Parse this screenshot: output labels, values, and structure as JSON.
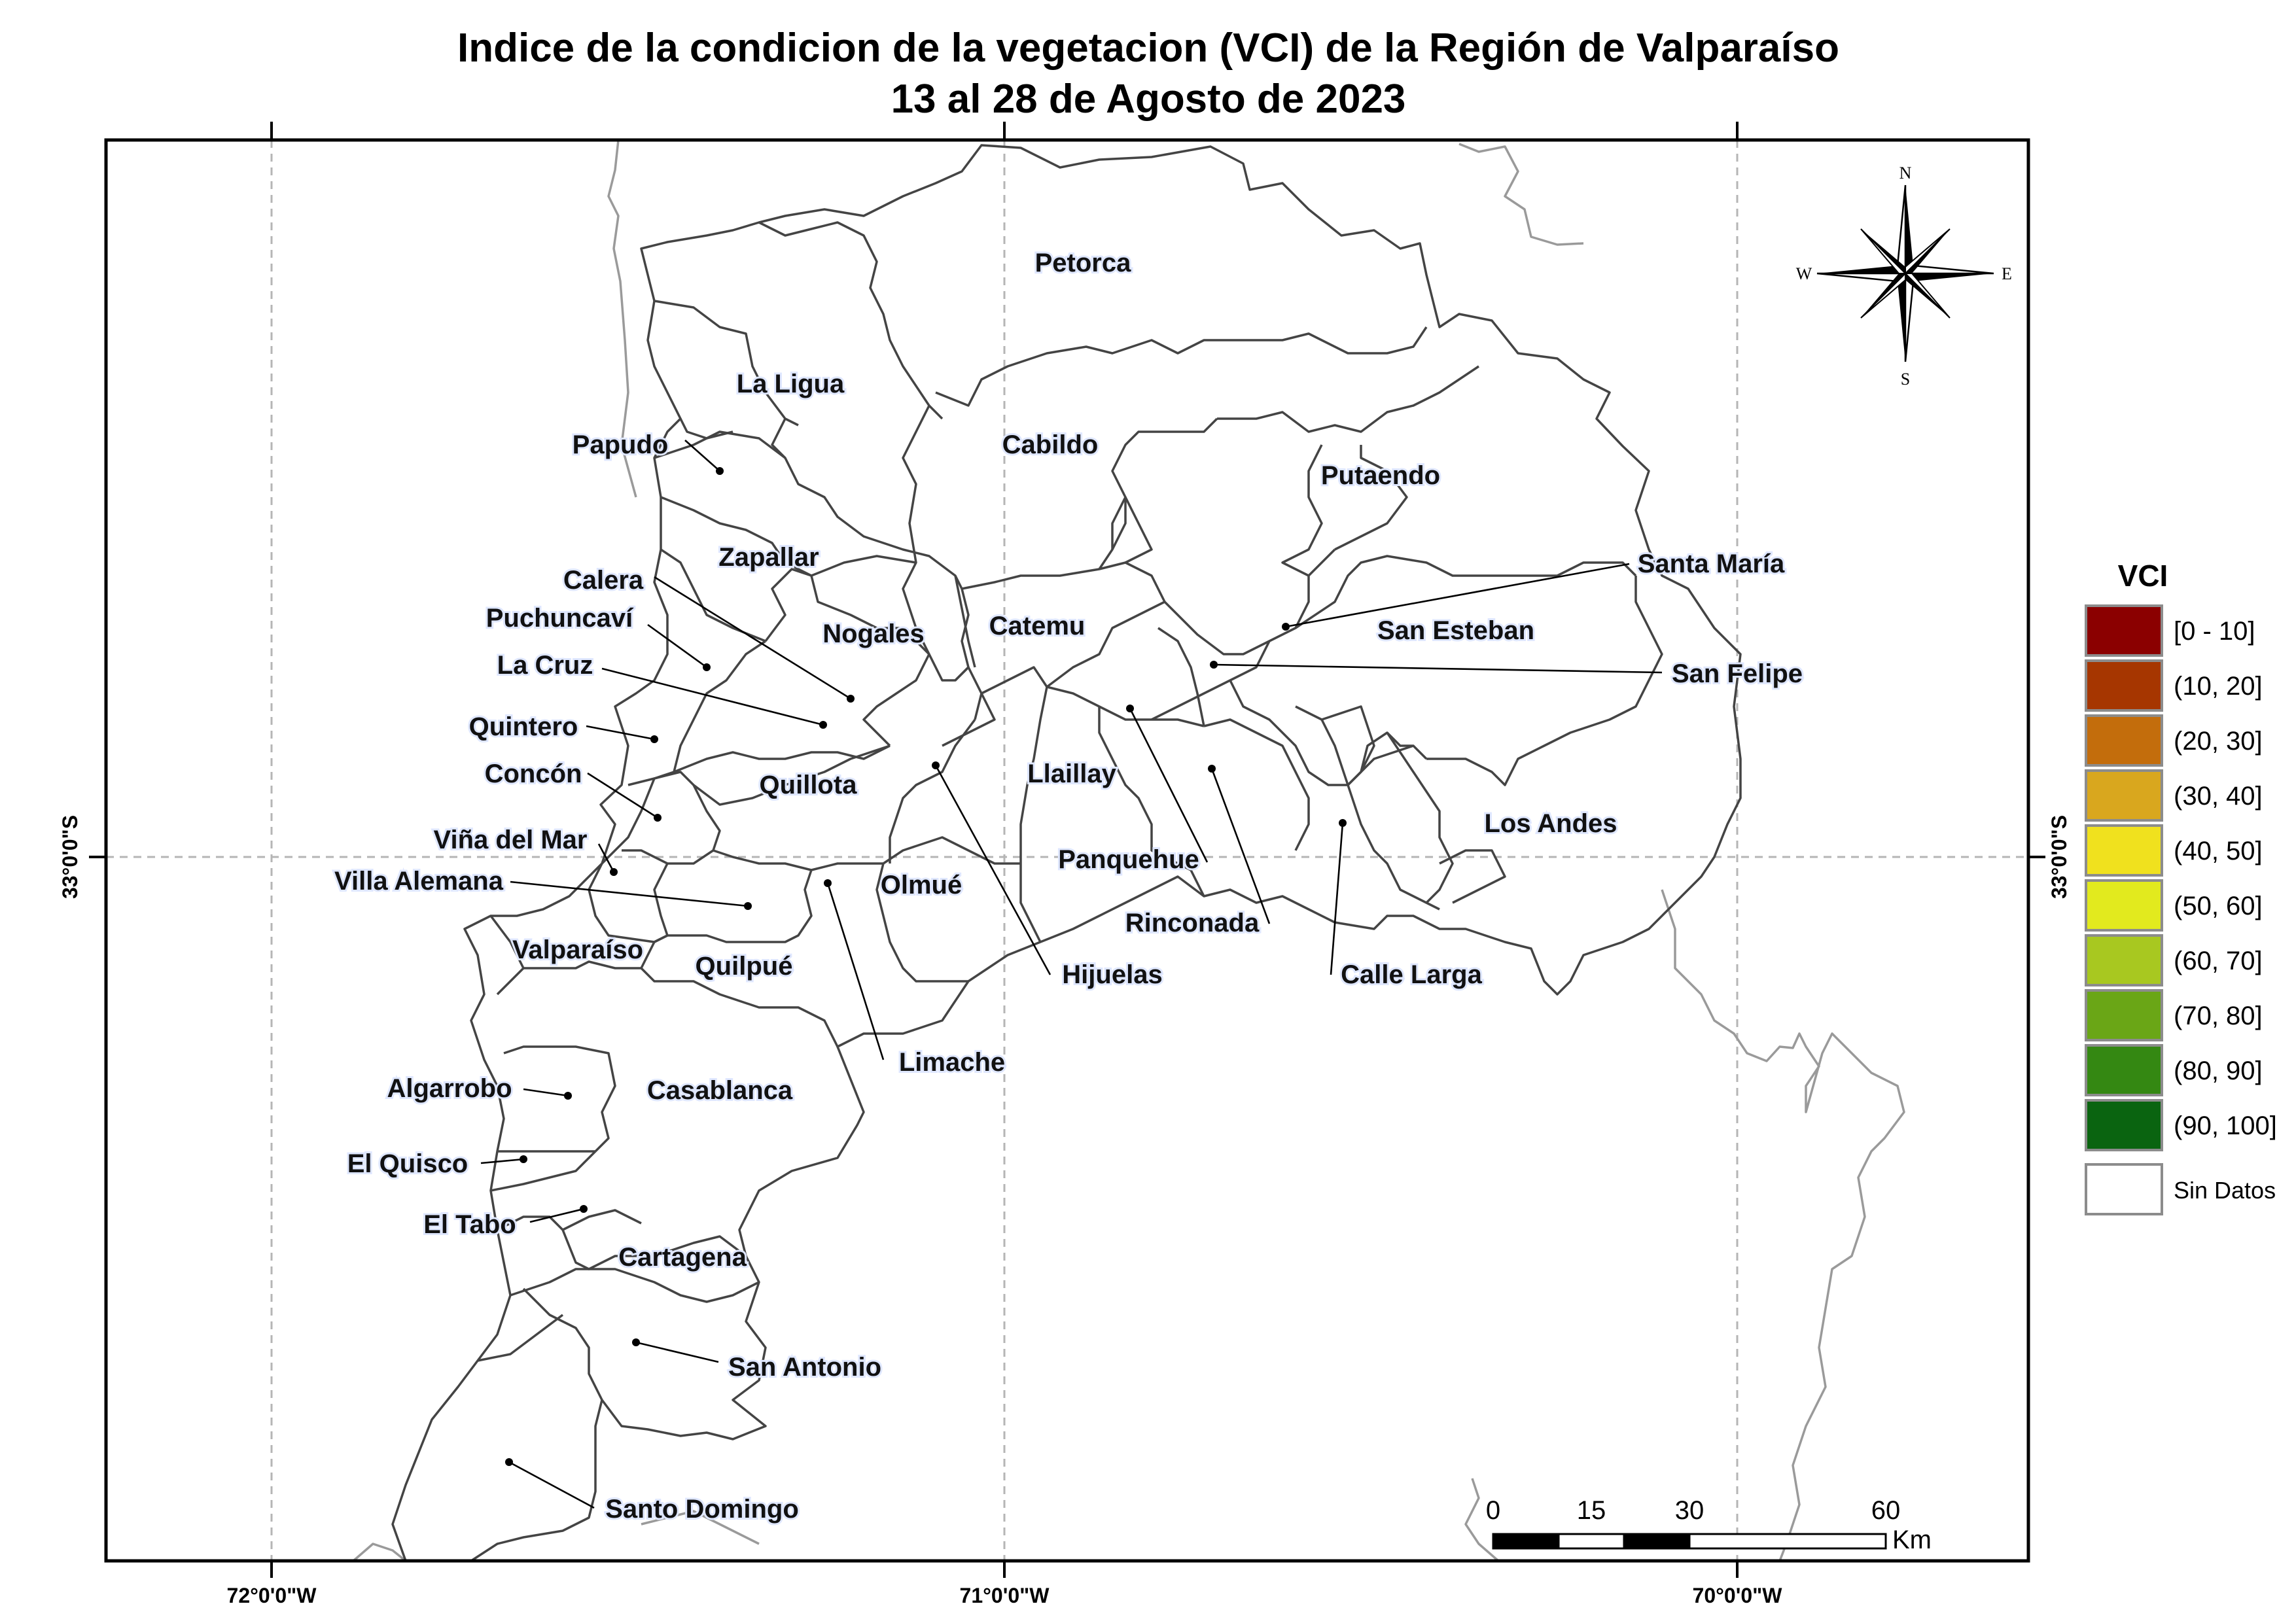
{
  "title": {
    "line1": "Indice de la condicion de la vegetacion (VCI) de la Región de Valparaíso",
    "line2": "13 al 28 de Agosto de 2023"
  },
  "grid_labels": {
    "lon_left": "72°0'0\"W",
    "lon_mid": "71°0'0\"W",
    "lon_right": "70°0'0\"W",
    "lat_left": "33°0'0\"S",
    "lat_right": "33°0'0\"S"
  },
  "compass": {
    "n": "N",
    "s": "S",
    "e": "E",
    "w": "W"
  },
  "comunas": {
    "petorca": "Petorca",
    "la_ligua": "La Ligua",
    "papudo": "Papudo",
    "cabildo": "Cabildo",
    "putaendo": "Putaendo",
    "zapallar": "Zapallar",
    "calera": "Calera",
    "puchuncavi": "Puchuncaví",
    "nogales": "Nogales",
    "catemu": "Catemu",
    "santa_maria": "Santa María",
    "san_esteban": "San Esteban",
    "la_cruz": "La Cruz",
    "san_felipe": "San Felipe",
    "quintero": "Quintero",
    "llaillay": "Llaillay",
    "concon": "Concón",
    "quillota": "Quillota",
    "los_andes": "Los Andes",
    "vina_del_mar": "Viña del Mar",
    "panquehue": "Panquehue",
    "villa_alemana": "Villa Alemana",
    "olmue": "Olmué",
    "rinconada": "Rinconada",
    "valparaiso": "Valparaíso",
    "quilpue": "Quilpué",
    "hijuelas": "Hijuelas",
    "calle_larga": "Calle Larga",
    "limache": "Limache",
    "algarrobo": "Algarrobo",
    "casablanca": "Casablanca",
    "el_quisco": "El Quisco",
    "el_tabo": "El Tabo",
    "cartagena": "Cartagena",
    "san_antonio": "San Antonio",
    "santo_domingo": "Santo Domingo"
  },
  "legend": {
    "title": "VCI",
    "items": [
      {
        "label": "[0 - 10]",
        "color": "#8b0000"
      },
      {
        "label": "(10, 20]",
        "color": "#a63600"
      },
      {
        "label": "(20, 30]",
        "color": "#c36d0c"
      },
      {
        "label": "(30, 40]",
        "color": "#d9a71e"
      },
      {
        "label": "(40, 50]",
        "color": "#f0e11e"
      },
      {
        "label": "(50, 60]",
        "color": "#e2ea1e"
      },
      {
        "label": "(60, 70]",
        "color": "#a8c820"
      },
      {
        "label": "(70, 80]",
        "color": "#6aa616"
      },
      {
        "label": "(80, 90]",
        "color": "#348812"
      },
      {
        "label": "(90, 100]",
        "color": "#0a6410"
      }
    ],
    "no_data": {
      "label": "Sin Datos",
      "color": "#ffffff"
    }
  },
  "scale_bar": {
    "ticks": [
      "0",
      "15",
      "30",
      "60"
    ],
    "unit": "Km"
  },
  "colors": {
    "comuna_fill": "#ffffff",
    "comuna_border": "#444444",
    "country_border": "#9a9a9a",
    "label_halo": "#dfe7ff"
  }
}
